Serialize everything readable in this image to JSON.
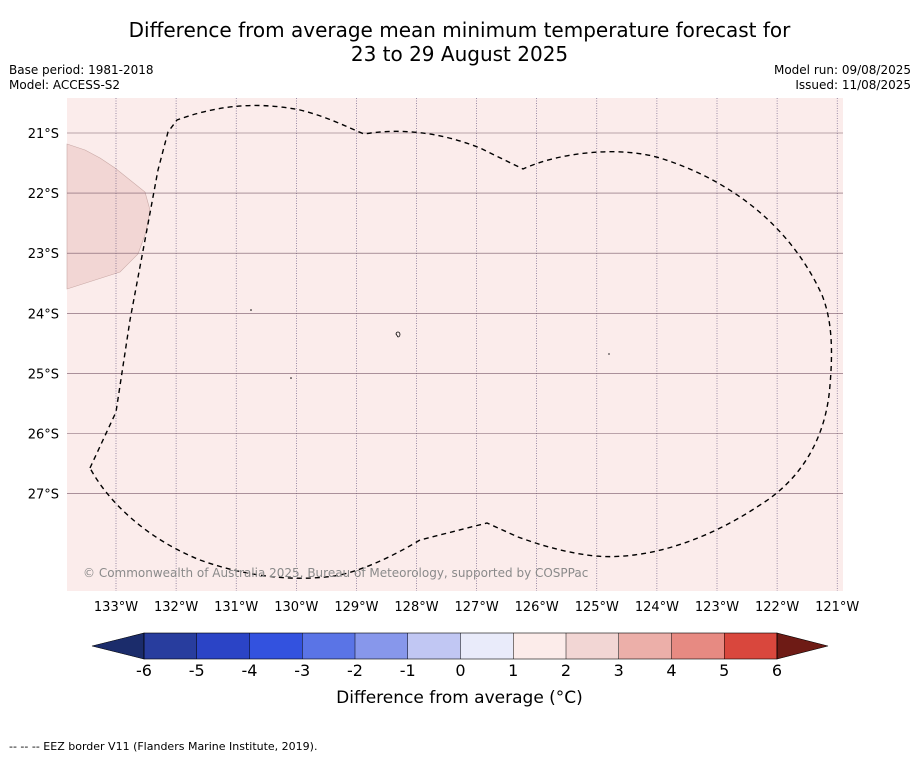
{
  "title_line1": "Difference from average mean minimum temperature forecast for",
  "title_line2": "23 to 29 August 2025",
  "base_period": "Base period: 1981-2018",
  "model": "Model: ACCESS-S2",
  "model_run": "Model run: 09/08/2025",
  "issued": "Issued: 11/08/2025",
  "copyright": "© Commonwealth of Australia 2025, Bureau of Meteorology, supported by COSPPac",
  "lon_labels": [
    "133°W",
    "132°W",
    "131°W",
    "130°W",
    "129°W",
    "128°W",
    "127°W",
    "126°W",
    "125°W",
    "124°W",
    "123°W",
    "122°W",
    "121°W"
  ],
  "lat_labels": [
    "21°S",
    "22°S",
    "23°S",
    "24°S",
    "25°S",
    "26°S",
    "27°S"
  ],
  "colorbar": {
    "ticks": [
      "-6",
      "-5",
      "-4",
      "-3",
      "-2",
      "-1",
      "0",
      "1",
      "2",
      "3",
      "4",
      "5",
      "6"
    ],
    "colors": [
      "#283d9e",
      "#2b44c6",
      "#3352df",
      "#5a74e6",
      "#8797eb",
      "#c1c7f3",
      "#e9ebfa",
      "#fcecea",
      "#f2d6d4",
      "#ecafa9",
      "#e78a82",
      "#d9473d",
      "#a82820"
    ],
    "low_color": "#1b2c6b",
    "high_color": "#6e1b15",
    "label": "Difference from average (°C)"
  },
  "map_colors": {
    "background": "#fbeceb",
    "anomaly_patch": "#f2d6d4"
  },
  "footer": "--  --  -- EEZ border V11 (Flanders Marine Institute, 2019)."
}
